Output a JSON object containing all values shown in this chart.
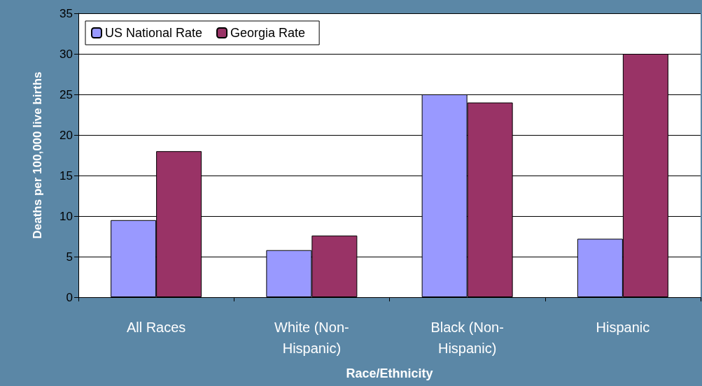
{
  "chart_data": {
    "type": "bar",
    "xlabel": "Race/Ethnicity",
    "ylabel": "Deaths per 100,000 live births",
    "categories": [
      "All Races",
      "White (Non-\nHispanic)",
      "Black (Non-\nHispanic)",
      "Hispanic"
    ],
    "series": [
      {
        "name": "US National Rate",
        "color": "#9999ff",
        "values": [
          9.5,
          5.8,
          25,
          7.2
        ]
      },
      {
        "name": "Georgia Rate",
        "color": "#993366",
        "values": [
          18,
          7.6,
          24,
          30
        ]
      }
    ],
    "ylim": [
      0,
      35
    ],
    "yticks": [
      0,
      5,
      10,
      15,
      20,
      25,
      30,
      35
    ],
    "grid": "y",
    "legend": "top left"
  }
}
